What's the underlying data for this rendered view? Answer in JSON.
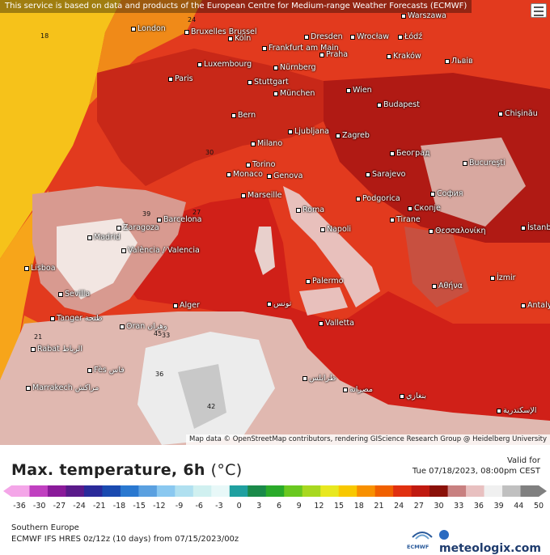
{
  "map": {
    "disclaimer": "This service is based on data and products of the European Centre for Medium-range Weather Forecasts (ECMWF)",
    "attribution": "Map data © OpenStreetMap contributors, rendering GIScience Research Group @ Heidelberg University",
    "cities": [
      {
        "name": "London"
      },
      {
        "name": "Bruxelles Brussel"
      },
      {
        "name": "Köln"
      },
      {
        "name": "Frankfurt am Main"
      },
      {
        "name": "Dresden"
      },
      {
        "name": "Wrocław"
      },
      {
        "name": "Łódź"
      },
      {
        "name": "Warszawa"
      },
      {
        "name": "Luxembourg"
      },
      {
        "name": "Nürnberg"
      },
      {
        "name": "Praha"
      },
      {
        "name": "Kraków"
      },
      {
        "name": "Львів"
      },
      {
        "name": "Paris"
      },
      {
        "name": "Stuttgart"
      },
      {
        "name": "München"
      },
      {
        "name": "Wien"
      },
      {
        "name": "Budapest"
      },
      {
        "name": "Bern"
      },
      {
        "name": "Chişinău"
      },
      {
        "name": "Milano"
      },
      {
        "name": "Ljubljana"
      },
      {
        "name": "Zagreb"
      },
      {
        "name": "Torino"
      },
      {
        "name": "Београд"
      },
      {
        "name": "Monaco"
      },
      {
        "name": "Genova"
      },
      {
        "name": "Sarajevo"
      },
      {
        "name": "Bucureşti"
      },
      {
        "name": "Marseille"
      },
      {
        "name": "Podgorica"
      },
      {
        "name": "София"
      },
      {
        "name": "Barcelona"
      },
      {
        "name": "Roma"
      },
      {
        "name": "Tirane"
      },
      {
        "name": "Скопје"
      },
      {
        "name": "Zaragoza"
      },
      {
        "name": "Madrid"
      },
      {
        "name": "Napoli"
      },
      {
        "name": "Θεσσαλονίκη"
      },
      {
        "name": "İstanbul"
      },
      {
        "name": "València / Valencia"
      },
      {
        "name": "Lisboa"
      },
      {
        "name": "Palermo"
      },
      {
        "name": "Αθήνα"
      },
      {
        "name": "İzmir"
      },
      {
        "name": "Sevilla"
      },
      {
        "name": "Alger"
      },
      {
        "name": "تونس"
      },
      {
        "name": "Tanger طنجة"
      },
      {
        "name": "Oran وهران"
      },
      {
        "name": "Valletta"
      },
      {
        "name": "Antalya"
      },
      {
        "name": "Rabat الرباط"
      },
      {
        "name": "Fès فاس"
      },
      {
        "name": "طرابلس"
      },
      {
        "name": "مصراته"
      },
      {
        "name": "بنغازي"
      },
      {
        "name": "Marrakech مراكش"
      },
      {
        "name": "الإسكندرية"
      }
    ],
    "temperature_labels": [
      "18",
      "21",
      "24",
      "27",
      "30",
      "33",
      "36",
      "39",
      "42",
      "45"
    ]
  },
  "legend": {
    "title": "Max. temperature, 6h",
    "unit": "(°C)",
    "valid_label": "Valid for",
    "valid_time": "Tue 07/18/2023, 08:00pm CEST",
    "ticks": [
      "-36",
      "-30",
      "-27",
      "-24",
      "-21",
      "-18",
      "-15",
      "-12",
      "-9",
      "-6",
      "-3",
      "0",
      "3",
      "6",
      "9",
      "12",
      "15",
      "18",
      "21",
      "24",
      "27",
      "30",
      "33",
      "36",
      "39",
      "44",
      "50"
    ],
    "colors": [
      "#f4a6e8",
      "#c040c0",
      "#8a1a9a",
      "#5a1a8a",
      "#2a2a9a",
      "#1a4ab0",
      "#2a78d0",
      "#5aa0e0",
      "#8ac8f0",
      "#b0e0f0",
      "#d0f0f0",
      "#e8f8f8",
      "#20a0a0",
      "#1a8a4a",
      "#2aaa2a",
      "#6ac820",
      "#a8d820",
      "#e8e820",
      "#f8c800",
      "#f89000",
      "#f06000",
      "#e03010",
      "#c01a10",
      "#8a1008",
      "#c88080",
      "#e8c0c0",
      "#f0f0f0",
      "#c0c0c0",
      "#808080"
    ]
  },
  "footer": {
    "region": "Southern Europe",
    "model": "ECMWF IFS HRES 0z/12z (10 days) from  07/15/2023/00z",
    "ecmwf_logo_text": "ECMWF",
    "brand": "meteologix.com"
  }
}
